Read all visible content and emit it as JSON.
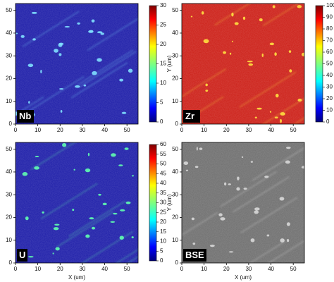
{
  "chart_data": [
    {
      "type": "map",
      "label": "Nb",
      "color": "#1c1ca8",
      "spot": "#7fe0ff",
      "xlim": [
        0,
        55
      ],
      "xticks": [
        0,
        10,
        20,
        30,
        40,
        50
      ],
      "ylim": [
        0,
        53
      ],
      "yticks": [
        0,
        10,
        20,
        30,
        40,
        50
      ],
      "colorbar": {
        "lim": [
          0,
          30
        ],
        "ticks": [
          0,
          5,
          10,
          15,
          20,
          25,
          30
        ]
      }
    },
    {
      "type": "map",
      "label": "Zr",
      "color": "#cc1e16",
      "spot": "#ffe040",
      "ylabel": "Y (um)",
      "xlim": [
        0,
        55
      ],
      "xticks": [
        0,
        10,
        20,
        30,
        40,
        50
      ],
      "ylim": [
        0,
        53
      ],
      "yticks": [
        0,
        10,
        20,
        30,
        40,
        50
      ],
      "colorbar": {
        "lim": [
          0,
          100
        ],
        "ticks": [
          0,
          10,
          20,
          30,
          40,
          50,
          60,
          70,
          80,
          90,
          100
        ]
      }
    },
    {
      "type": "map",
      "label": "U",
      "color": "#1c1ca8",
      "spot": "#60ffb0",
      "xlabel": "X (um)",
      "xlim": [
        0,
        55
      ],
      "xticks": [
        0,
        10,
        20,
        30,
        40,
        50
      ],
      "ylim": [
        0,
        53
      ],
      "yticks": [
        0,
        10,
        20,
        30,
        40,
        50
      ],
      "colorbar": {
        "lim": [
          0,
          60
        ],
        "ticks": [
          0,
          5,
          10,
          15,
          20,
          25,
          30,
          35,
          40,
          45,
          50,
          55,
          60
        ]
      }
    },
    {
      "type": "map",
      "label": "BSE",
      "color": "#6e6e6e",
      "spot": "#d8d8d8",
      "xlabel": "X (um)",
      "ylabel": "Y (um)",
      "xlim": [
        0,
        55
      ],
      "xticks": [
        0,
        10,
        20,
        30,
        40,
        50
      ],
      "ylim": [
        0,
        53
      ],
      "yticks": [
        0,
        10,
        20,
        30,
        40,
        50
      ]
    }
  ]
}
